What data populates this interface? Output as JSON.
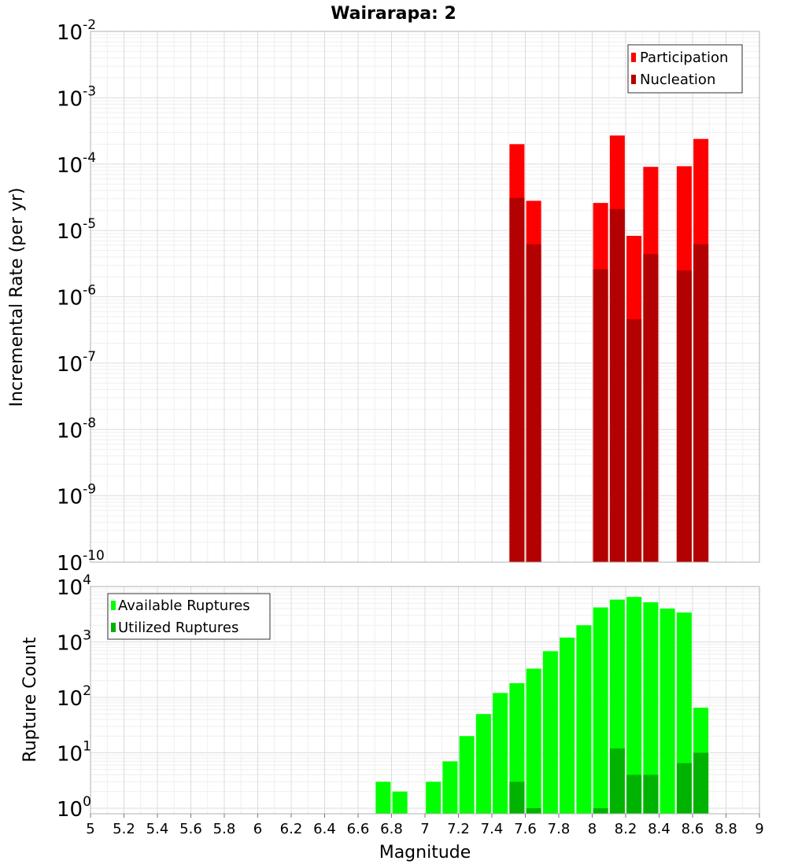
{
  "chart_data": [
    {
      "type": "bar",
      "title": "Wairarapa: 2",
      "xlabel": "",
      "ylabel": "Incremental Rate (per yr)",
      "y_scale": "log",
      "ylim_exponents": [
        -10,
        -2
      ],
      "xlim": [
        5,
        9
      ],
      "grid": true,
      "legend_position": "top-right",
      "x": [
        7.55,
        7.65,
        8.05,
        8.15,
        8.25,
        8.35,
        8.55,
        8.65
      ],
      "series": [
        {
          "name": "Participation",
          "color": "#ff0000",
          "values": [
            0.0002,
            2.8e-05,
            2.6e-05,
            0.00027,
            8.3e-06,
            9.1e-05,
            9.3e-05,
            0.00024
          ]
        },
        {
          "name": "Nucleation",
          "color": "#b30000",
          "values": [
            3.1e-05,
            6.2e-06,
            2.6e-06,
            2.1e-05,
            4.6e-07,
            4.4e-06,
            2.5e-06,
            6.2e-06
          ]
        }
      ]
    },
    {
      "type": "bar",
      "title": "",
      "xlabel": "Magnitude",
      "ylabel": "Rupture Count",
      "y_scale": "log",
      "ylim_exponents": [
        -0.1,
        4
      ],
      "xlim": [
        5,
        9
      ],
      "grid": true,
      "legend_position": "top-left",
      "x_ticks": [
        "5",
        "5.2",
        "5.4",
        "5.6",
        "5.8",
        "6",
        "6.2",
        "6.4",
        "6.6",
        "6.8",
        "7",
        "7.2",
        "7.4",
        "7.6",
        "7.8",
        "8",
        "8.2",
        "8.4",
        "8.6",
        "8.8",
        "9"
      ],
      "x": [
        6.75,
        6.85,
        7.05,
        7.15,
        7.25,
        7.35,
        7.45,
        7.55,
        7.65,
        7.75,
        7.85,
        7.95,
        8.05,
        8.15,
        8.25,
        8.35,
        8.45,
        8.55,
        8.65
      ],
      "series": [
        {
          "name": "Available Ruptures",
          "color": "#00ff00",
          "values": [
            3,
            2,
            3,
            7,
            20,
            50,
            120,
            180,
            330,
            680,
            1200,
            2000,
            4200,
            5800,
            6500,
            5200,
            4000,
            3400,
            65
          ]
        },
        {
          "name": "Utilized Ruptures",
          "color": "#00b300",
          "values": [
            0,
            0,
            0,
            0,
            0,
            0,
            0,
            3,
            1,
            0,
            0,
            0,
            1,
            12,
            4,
            4,
            0,
            6.5,
            10
          ]
        }
      ]
    }
  ]
}
